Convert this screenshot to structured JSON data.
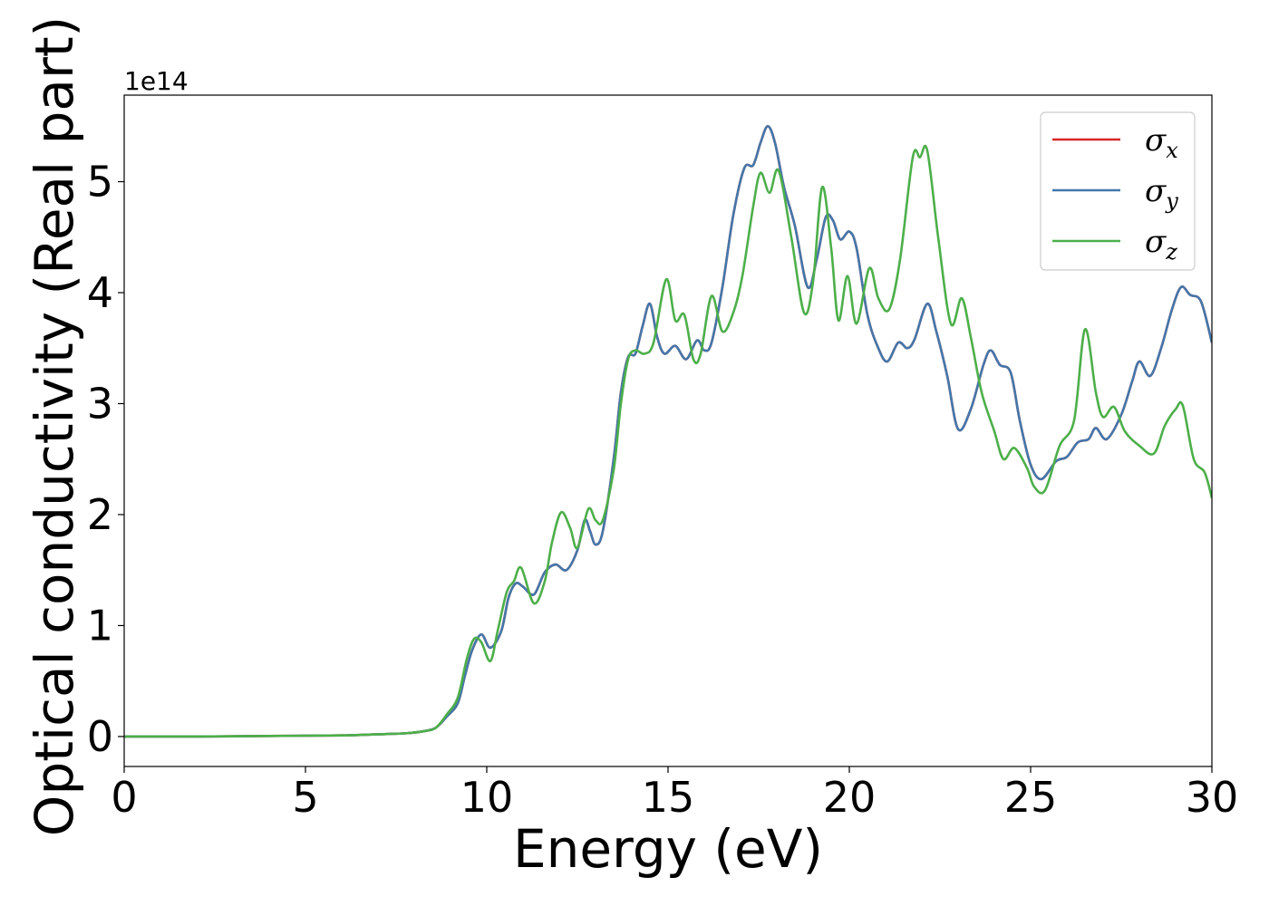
{
  "chart_data": {
    "type": "line",
    "title": "",
    "xlabel": "Energy (eV)",
    "ylabel": "Optical conductivity (Real part)",
    "y_offset_label": "1e14",
    "xlim": [
      0,
      30
    ],
    "ylim": [
      -0.27,
      5.78
    ],
    "y_scale_factor": 100000000000000.0,
    "x_ticks": [
      0,
      5,
      10,
      15,
      20,
      25,
      30
    ],
    "x_tick_labels": [
      "0",
      "5",
      "10",
      "15",
      "20",
      "25",
      "30"
    ],
    "y_ticks": [
      0,
      1,
      2,
      3,
      4,
      5
    ],
    "y_tick_labels": [
      "0",
      "1",
      "2",
      "3",
      "4",
      "5"
    ],
    "grid": false,
    "legend_position": "top-right",
    "series": [
      {
        "name": "σx",
        "legend_base": "σ",
        "legend_sub": "x",
        "color": "#d62728",
        "points": [
          [
            0,
            0
          ],
          [
            2,
            0
          ],
          [
            4,
            0.005
          ],
          [
            6,
            0.01
          ],
          [
            7,
            0.02
          ],
          [
            7.8,
            0.03
          ],
          [
            8.3,
            0.05
          ],
          [
            8.6,
            0.08
          ],
          [
            8.9,
            0.18
          ],
          [
            9.2,
            0.3
          ],
          [
            9.4,
            0.55
          ],
          [
            9.6,
            0.78
          ],
          [
            9.85,
            0.92
          ],
          [
            10.1,
            0.8
          ],
          [
            10.4,
            0.95
          ],
          [
            10.6,
            1.25
          ],
          [
            10.8,
            1.38
          ],
          [
            11.0,
            1.35
          ],
          [
            11.3,
            1.28
          ],
          [
            11.6,
            1.48
          ],
          [
            11.9,
            1.55
          ],
          [
            12.2,
            1.5
          ],
          [
            12.5,
            1.68
          ],
          [
            12.7,
            1.95
          ],
          [
            12.85,
            1.85
          ],
          [
            13.0,
            1.73
          ],
          [
            13.2,
            1.85
          ],
          [
            13.5,
            2.5
          ],
          [
            13.7,
            3.1
          ],
          [
            13.9,
            3.42
          ],
          [
            14.1,
            3.45
          ],
          [
            14.3,
            3.7
          ],
          [
            14.5,
            3.9
          ],
          [
            14.7,
            3.6
          ],
          [
            14.9,
            3.45
          ],
          [
            15.2,
            3.52
          ],
          [
            15.5,
            3.4
          ],
          [
            15.8,
            3.57
          ],
          [
            16.0,
            3.48
          ],
          [
            16.2,
            3.55
          ],
          [
            16.5,
            4.05
          ],
          [
            16.8,
            4.7
          ],
          [
            17.1,
            5.12
          ],
          [
            17.35,
            5.15
          ],
          [
            17.55,
            5.35
          ],
          [
            17.75,
            5.5
          ],
          [
            17.95,
            5.35
          ],
          [
            18.2,
            4.95
          ],
          [
            18.5,
            4.6
          ],
          [
            18.85,
            4.05
          ],
          [
            19.1,
            4.3
          ],
          [
            19.35,
            4.68
          ],
          [
            19.55,
            4.65
          ],
          [
            19.75,
            4.48
          ],
          [
            20.0,
            4.55
          ],
          [
            20.2,
            4.4
          ],
          [
            20.5,
            3.8
          ],
          [
            20.8,
            3.5
          ],
          [
            21.05,
            3.38
          ],
          [
            21.35,
            3.55
          ],
          [
            21.6,
            3.5
          ],
          [
            21.8,
            3.58
          ],
          [
            22.15,
            3.9
          ],
          [
            22.4,
            3.65
          ],
          [
            22.7,
            3.25
          ],
          [
            23.0,
            2.77
          ],
          [
            23.35,
            2.95
          ],
          [
            23.7,
            3.35
          ],
          [
            23.9,
            3.48
          ],
          [
            24.15,
            3.35
          ],
          [
            24.45,
            3.28
          ],
          [
            24.7,
            2.85
          ],
          [
            25.0,
            2.45
          ],
          [
            25.3,
            2.32
          ],
          [
            25.7,
            2.48
          ],
          [
            26.0,
            2.52
          ],
          [
            26.3,
            2.65
          ],
          [
            26.6,
            2.68
          ],
          [
            26.8,
            2.78
          ],
          [
            27.1,
            2.68
          ],
          [
            27.5,
            2.9
          ],
          [
            27.8,
            3.2
          ],
          [
            28.0,
            3.38
          ],
          [
            28.3,
            3.25
          ],
          [
            28.6,
            3.5
          ],
          [
            28.9,
            3.85
          ],
          [
            29.15,
            4.05
          ],
          [
            29.4,
            3.98
          ],
          [
            29.7,
            3.92
          ],
          [
            30.0,
            3.55
          ]
        ]
      },
      {
        "name": "σy",
        "legend_base": "σ",
        "legend_sub": "y",
        "color": "#4477aa",
        "points": [
          [
            0,
            0
          ],
          [
            2,
            0
          ],
          [
            4,
            0.005
          ],
          [
            6,
            0.01
          ],
          [
            7,
            0.02
          ],
          [
            7.8,
            0.03
          ],
          [
            8.3,
            0.05
          ],
          [
            8.6,
            0.08
          ],
          [
            8.9,
            0.18
          ],
          [
            9.2,
            0.3
          ],
          [
            9.4,
            0.55
          ],
          [
            9.6,
            0.78
          ],
          [
            9.85,
            0.92
          ],
          [
            10.1,
            0.8
          ],
          [
            10.4,
            0.95
          ],
          [
            10.6,
            1.25
          ],
          [
            10.8,
            1.38
          ],
          [
            11.0,
            1.35
          ],
          [
            11.3,
            1.28
          ],
          [
            11.6,
            1.48
          ],
          [
            11.9,
            1.55
          ],
          [
            12.2,
            1.5
          ],
          [
            12.5,
            1.68
          ],
          [
            12.7,
            1.95
          ],
          [
            12.85,
            1.85
          ],
          [
            13.0,
            1.73
          ],
          [
            13.2,
            1.85
          ],
          [
            13.5,
            2.5
          ],
          [
            13.7,
            3.1
          ],
          [
            13.9,
            3.42
          ],
          [
            14.1,
            3.45
          ],
          [
            14.3,
            3.7
          ],
          [
            14.5,
            3.9
          ],
          [
            14.7,
            3.6
          ],
          [
            14.9,
            3.45
          ],
          [
            15.2,
            3.52
          ],
          [
            15.5,
            3.4
          ],
          [
            15.8,
            3.57
          ],
          [
            16.0,
            3.48
          ],
          [
            16.2,
            3.55
          ],
          [
            16.5,
            4.05
          ],
          [
            16.8,
            4.7
          ],
          [
            17.1,
            5.12
          ],
          [
            17.35,
            5.15
          ],
          [
            17.55,
            5.35
          ],
          [
            17.75,
            5.5
          ],
          [
            17.95,
            5.35
          ],
          [
            18.2,
            4.95
          ],
          [
            18.5,
            4.6
          ],
          [
            18.85,
            4.05
          ],
          [
            19.1,
            4.3
          ],
          [
            19.35,
            4.68
          ],
          [
            19.55,
            4.65
          ],
          [
            19.75,
            4.48
          ],
          [
            20.0,
            4.55
          ],
          [
            20.2,
            4.4
          ],
          [
            20.5,
            3.8
          ],
          [
            20.8,
            3.5
          ],
          [
            21.05,
            3.38
          ],
          [
            21.35,
            3.55
          ],
          [
            21.6,
            3.5
          ],
          [
            21.8,
            3.58
          ],
          [
            22.15,
            3.9
          ],
          [
            22.4,
            3.65
          ],
          [
            22.7,
            3.25
          ],
          [
            23.0,
            2.77
          ],
          [
            23.35,
            2.95
          ],
          [
            23.7,
            3.35
          ],
          [
            23.9,
            3.48
          ],
          [
            24.15,
            3.35
          ],
          [
            24.45,
            3.28
          ],
          [
            24.7,
            2.85
          ],
          [
            25.0,
            2.45
          ],
          [
            25.3,
            2.32
          ],
          [
            25.7,
            2.48
          ],
          [
            26.0,
            2.52
          ],
          [
            26.3,
            2.65
          ],
          [
            26.6,
            2.68
          ],
          [
            26.8,
            2.78
          ],
          [
            27.1,
            2.68
          ],
          [
            27.5,
            2.9
          ],
          [
            27.8,
            3.2
          ],
          [
            28.0,
            3.38
          ],
          [
            28.3,
            3.25
          ],
          [
            28.6,
            3.5
          ],
          [
            28.9,
            3.85
          ],
          [
            29.15,
            4.05
          ],
          [
            29.4,
            3.98
          ],
          [
            29.7,
            3.92
          ],
          [
            30.0,
            3.55
          ]
        ]
      },
      {
        "name": "σz",
        "legend_base": "σ",
        "legend_sub": "z",
        "color": "#4daf4a",
        "points": [
          [
            0,
            0
          ],
          [
            2,
            0
          ],
          [
            4,
            0.005
          ],
          [
            6,
            0.01
          ],
          [
            7,
            0.02
          ],
          [
            7.8,
            0.03
          ],
          [
            8.3,
            0.05
          ],
          [
            8.6,
            0.08
          ],
          [
            8.9,
            0.2
          ],
          [
            9.2,
            0.35
          ],
          [
            9.45,
            0.7
          ],
          [
            9.65,
            0.88
          ],
          [
            9.85,
            0.85
          ],
          [
            10.1,
            0.68
          ],
          [
            10.3,
            0.95
          ],
          [
            10.55,
            1.3
          ],
          [
            10.75,
            1.4
          ],
          [
            10.95,
            1.52
          ],
          [
            11.3,
            1.2
          ],
          [
            11.6,
            1.4
          ],
          [
            11.8,
            1.75
          ],
          [
            12.05,
            2.02
          ],
          [
            12.3,
            1.88
          ],
          [
            12.5,
            1.7
          ],
          [
            12.8,
            2.05
          ],
          [
            13.0,
            1.95
          ],
          [
            13.2,
            1.95
          ],
          [
            13.5,
            2.4
          ],
          [
            13.7,
            3.0
          ],
          [
            13.9,
            3.4
          ],
          [
            14.1,
            3.48
          ],
          [
            14.35,
            3.45
          ],
          [
            14.6,
            3.55
          ],
          [
            14.95,
            4.12
          ],
          [
            15.2,
            3.75
          ],
          [
            15.45,
            3.8
          ],
          [
            15.7,
            3.4
          ],
          [
            15.9,
            3.45
          ],
          [
            16.2,
            3.97
          ],
          [
            16.5,
            3.65
          ],
          [
            16.8,
            3.82
          ],
          [
            17.05,
            4.15
          ],
          [
            17.35,
            4.78
          ],
          [
            17.55,
            5.08
          ],
          [
            17.8,
            4.9
          ],
          [
            18.05,
            5.1
          ],
          [
            18.4,
            4.5
          ],
          [
            18.75,
            3.82
          ],
          [
            19.0,
            4.1
          ],
          [
            19.25,
            4.95
          ],
          [
            19.5,
            4.4
          ],
          [
            19.7,
            3.75
          ],
          [
            19.95,
            4.15
          ],
          [
            20.2,
            3.72
          ],
          [
            20.55,
            4.22
          ],
          [
            20.8,
            3.95
          ],
          [
            21.1,
            3.85
          ],
          [
            21.4,
            4.3
          ],
          [
            21.75,
            5.22
          ],
          [
            21.95,
            5.22
          ],
          [
            22.15,
            5.28
          ],
          [
            22.45,
            4.5
          ],
          [
            22.8,
            3.72
          ],
          [
            23.1,
            3.95
          ],
          [
            23.35,
            3.6
          ],
          [
            23.65,
            3.1
          ],
          [
            24.0,
            2.75
          ],
          [
            24.25,
            2.5
          ],
          [
            24.55,
            2.6
          ],
          [
            24.9,
            2.42
          ],
          [
            25.1,
            2.25
          ],
          [
            25.4,
            2.22
          ],
          [
            25.8,
            2.62
          ],
          [
            26.2,
            2.85
          ],
          [
            26.5,
            3.67
          ],
          [
            26.8,
            3.1
          ],
          [
            27.0,
            2.88
          ],
          [
            27.3,
            2.97
          ],
          [
            27.6,
            2.75
          ],
          [
            28.0,
            2.62
          ],
          [
            28.4,
            2.55
          ],
          [
            28.7,
            2.8
          ],
          [
            29.0,
            2.95
          ],
          [
            29.2,
            2.98
          ],
          [
            29.5,
            2.5
          ],
          [
            29.8,
            2.38
          ],
          [
            30.0,
            2.15
          ]
        ]
      }
    ]
  }
}
